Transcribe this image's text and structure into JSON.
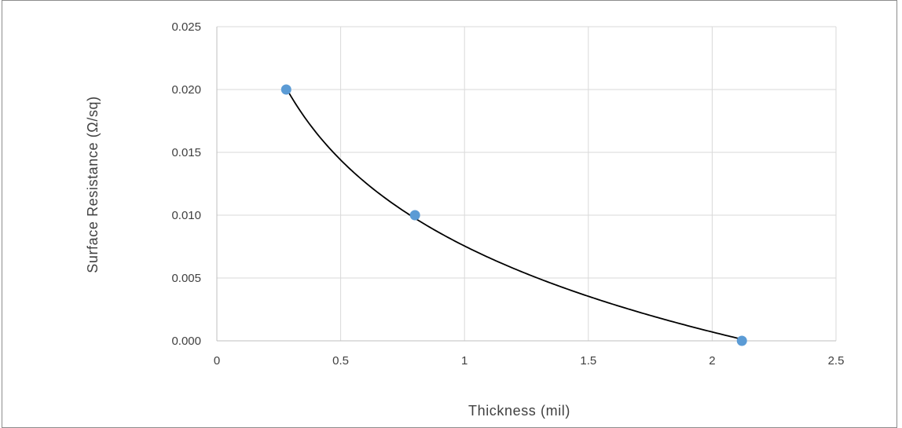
{
  "chart_data": {
    "type": "scatter",
    "title": "",
    "xlabel": "Thickness (mil)",
    "ylabel": "Surface Resistance (Ω/sq)",
    "xlim": [
      0,
      2.5
    ],
    "ylim": [
      0,
      0.025
    ],
    "x_ticks": [
      "0",
      "0.5",
      "1",
      "1.5",
      "2",
      "2.5"
    ],
    "y_ticks": [
      "0.000",
      "0.005",
      "0.010",
      "0.015",
      "0.020",
      "0.025"
    ],
    "grid": true,
    "legend": "none",
    "series": [
      {
        "points": [
          {
            "x": 0.28,
            "y": 0.02
          },
          {
            "x": 0.8,
            "y": 0.01
          },
          {
            "x": 2.12,
            "y": 0.0
          }
        ],
        "color": "#5b9bd5"
      }
    ],
    "trendline": {
      "type": "logarithmic",
      "color": "#000000",
      "x_range": [
        0.28,
        2.12
      ]
    }
  }
}
